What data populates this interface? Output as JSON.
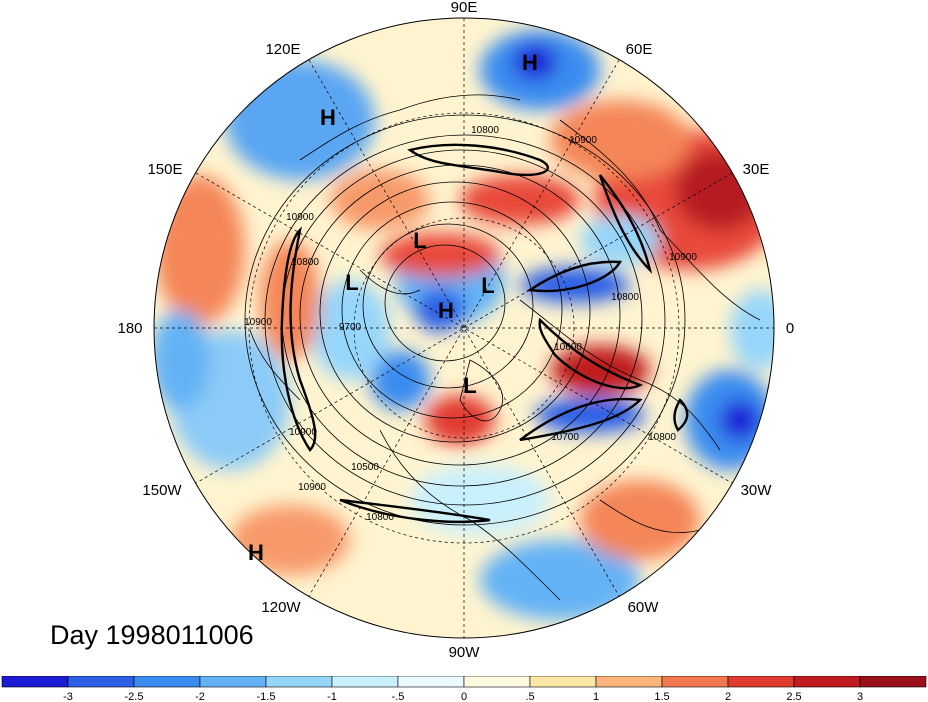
{
  "title": "Day 1998011006",
  "lon_labels": [
    {
      "text": "90E",
      "pos": "top"
    },
    {
      "text": "60E",
      "pos": "upper-right"
    },
    {
      "text": "30E",
      "pos": "right-upper"
    },
    {
      "text": "0",
      "pos": "right"
    },
    {
      "text": "30W",
      "pos": "right-lower"
    },
    {
      "text": "60W",
      "pos": "lower-right"
    },
    {
      "text": "90W",
      "pos": "bottom"
    },
    {
      "text": "120W",
      "pos": "lower-left"
    },
    {
      "text": "150W",
      "pos": "left-lower"
    },
    {
      "text": "180",
      "pos": "left"
    },
    {
      "text": "150E",
      "pos": "left-upper"
    },
    {
      "text": "120E",
      "pos": "upper-left"
    }
  ],
  "pressure_centers": [
    {
      "label": "H",
      "name": "high-top"
    },
    {
      "label": "H",
      "name": "high-upper-left"
    },
    {
      "label": "L",
      "name": "low-center-upper"
    },
    {
      "label": "L",
      "name": "low-center-left"
    },
    {
      "label": "L",
      "name": "low-center-right"
    },
    {
      "label": "H",
      "name": "high-center"
    },
    {
      "label": "L",
      "name": "low-lower-center"
    },
    {
      "label": "H",
      "name": "high-lower-left"
    }
  ],
  "contour_labels": [
    "10800",
    "10900",
    "10900",
    "10900",
    "10900",
    "9700",
    "10900",
    "10800",
    "10500",
    "10800",
    "10700",
    "10800",
    "10800",
    "10600",
    "10900"
  ],
  "colorbar": {
    "ticks": [
      "-3",
      "-2.5",
      "-2",
      "-1.5",
      "-1",
      "-.5",
      "0",
      ".5",
      "1",
      "1.5",
      "2",
      "2.5",
      "3"
    ],
    "colors": [
      "#1b1bd6",
      "#2c5fe6",
      "#3b8cf0",
      "#64b2f5",
      "#96d6fa",
      "#c9f0fd",
      "#eafaff",
      "#fffbe0",
      "#fde6a6",
      "#fbb47c",
      "#f2784f",
      "#e13b30",
      "#c01b1e",
      "#99101c"
    ]
  }
}
